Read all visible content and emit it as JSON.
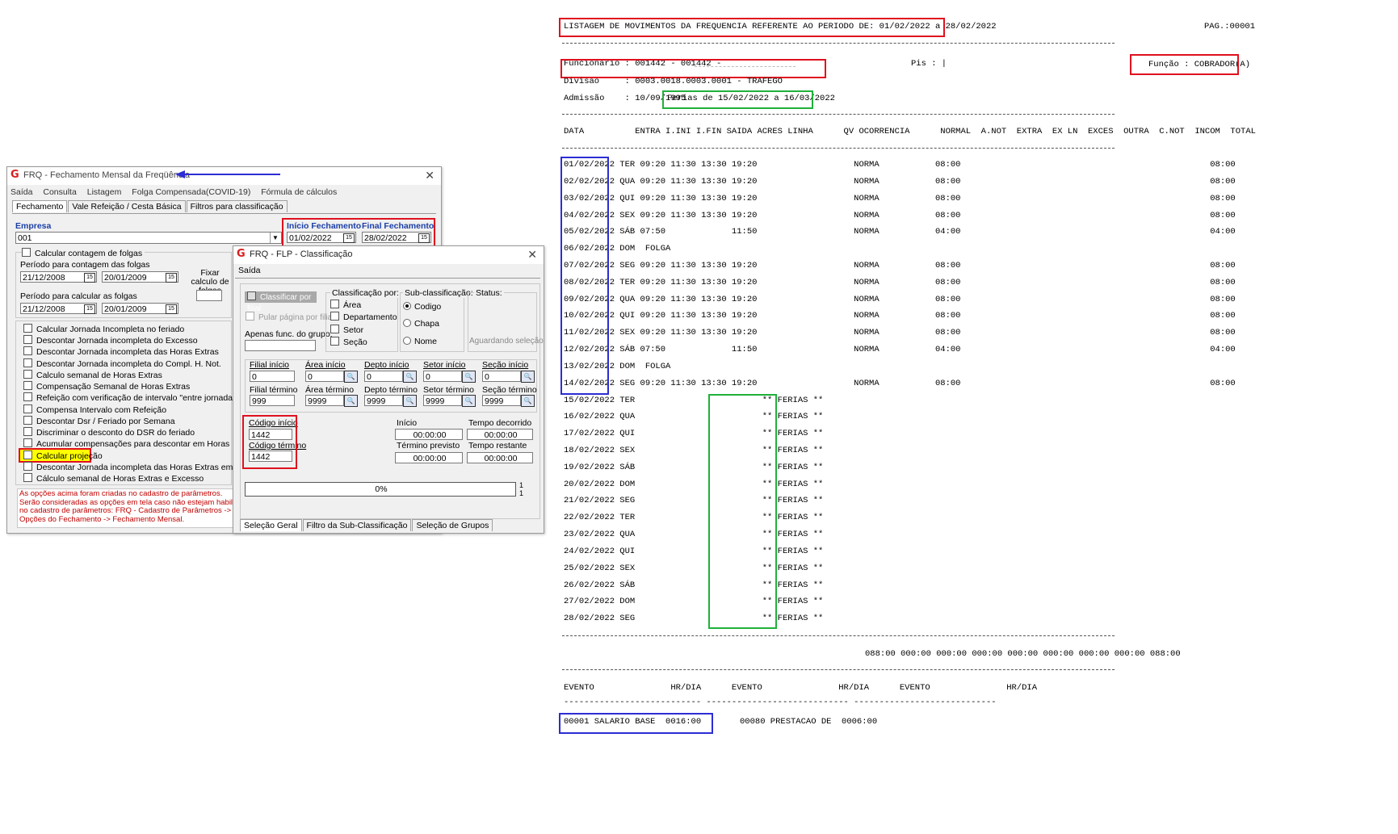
{
  "left_window": {
    "title": "FRQ - Fechamento Mensal da Freqüência",
    "close": "✕",
    "menu": [
      "Saída",
      "Consulta",
      "Listagem",
      "Folga Compensada(COVID-19)",
      "Fórmula de cálculos"
    ],
    "tabs": [
      "Fechamento",
      "Vale Refeição / Cesta Básica",
      "Filtros para classificação"
    ],
    "empresa_label": "Empresa",
    "empresa_value": "001",
    "inicio_label": "Início Fechamento",
    "final_label": "Final Fechamento",
    "inicio_value": "01/02/2022",
    "final_value": "28/02/2022",
    "calcular_contagem_folgas": "Calcular contagem de folgas",
    "periodo_contagem_label": "Período para contagem das folgas",
    "periodo_contagem_de": "21/12/2008",
    "periodo_contagem_ate": "20/01/2009",
    "fixar_calculo_label": "Fixar calculo de folgas",
    "periodo_calcular_label": "Período para calcular as folgas",
    "periodo_calcular_de": "21/12/2008",
    "periodo_calcular_ate": "20/01/2009",
    "options": [
      "Calcular Jornada Incompleta no feriado",
      "Descontar Jornada incompleta do Excesso",
      "Descontar Jornada incompleta das Horas Extras",
      "Descontar Jornada incompleta do Compl. H. Not.",
      "Calculo semanal de Horas Extras",
      "Compensação Semanal de Horas Extras",
      "Refeição com verificação de intervalo \"entre jornadas\"",
      "Compensa Intervalo com Refeição",
      "Descontar Dsr / Feriado por Semana",
      "Discriminar o desconto do DSR do feriado",
      "Acumular compensações para descontar em Horas",
      "Calcular projeção",
      "Descontar Jornada incompleta das Horas Extras em primeiro",
      "Cálculo semanal de Horas Extras e Excesso"
    ],
    "notice": [
      "As opções acima foram criadas no cadastro de parâmetros.",
      "Serão consideradas as opções em tela caso não estejam habilitados",
      "no cadastro de parâmetros: FRQ - Cadastro de Parâmetros ->",
      "Opções do Fechamento -> Fechamento Mensal."
    ]
  },
  "right_window": {
    "title": "FRQ - FLP - Classificação",
    "close": "✕",
    "menu": "Saída",
    "classificar_filial": "Classificar por filial",
    "pular_pagina": "Pular página por filial",
    "apenas_func_grupo": "Apenas func. do grupo:",
    "classificacao_label": "Classificação  por:",
    "classificacao_opts": [
      "Área",
      "Departamento",
      "Setor",
      "Seção"
    ],
    "subclass_label": "Sub-classificação:",
    "subclass_opts": [
      "Codigo",
      "Chapa",
      "Nome"
    ],
    "status_label": "Status:",
    "status_value": "Aguardando seleção",
    "filial_inicio_label": "Filial início",
    "filial_inicio": "0",
    "filial_termino_label": "Filial término",
    "filial_termino": "999",
    "area_inicio_label": "Área início",
    "area_inicio": "0",
    "area_termino_label": "Área término",
    "area_termino": "9999",
    "depto_inicio_label": "Depto início",
    "depto_inicio": "0",
    "depto_termino_label": "Depto término",
    "depto_termino": "9999",
    "setor_inicio_label": "Setor início",
    "setor_inicio": "0",
    "setor_termino_label": "Setor término",
    "setor_termino": "9999",
    "secao_inicio_label": "Seção início",
    "secao_inicio": "0",
    "secao_termino_label": "Seção término",
    "secao_termino": "9999",
    "codigo_inicio_label": "Código início",
    "codigo_inicio": "1442",
    "codigo_termino_label": "Código término",
    "codigo_termino": "1442",
    "inicio_label": "Início",
    "inicio_value": "00:00:00",
    "tempo_decorrido_label": "Tempo decorrido",
    "tempo_decorrido": "00:00:00",
    "termino_previsto_label": "Término previsto",
    "termino_previsto": "00:00:00",
    "tempo_restante_label": "Tempo restante",
    "tempo_restante": "00:00:00",
    "progress": "0%",
    "progress_side_1": "1",
    "progress_side_2": "1",
    "tabs": [
      "Seleção Geral",
      "Filtro da Sub-Classificação",
      "Seleção de Grupos"
    ]
  },
  "report": {
    "header": "LISTAGEM DE MOVIMENTOS DA FREQUENCIA REFERENTE AO PERIODO DE: 01/02/2022 a 28/02/2022",
    "page": "PAG.:00001",
    "funcionario": "Funcionario : 001442 - 001442 -",
    "pis": "Pis : |",
    "funcao": "Função : COBRADOR(A)",
    "divisao": "Divisao     : 0003.0018.0003.0001 - TRAFEGO",
    "admissao": "Admissão    : 10/09/1995",
    "ferias": "Ferias de 15/02/2022 a 16/03/2022",
    "columns": "DATA          ENTRA I.INI I.FIN SAIDA ACRES LINHA      QV OCORRENCIA      NORMAL  A.NOT  EXTRA  EX LN  EXCES  OUTRA  C.NOT  INCOM  TOTAL",
    "rows": [
      "01/02/2022 TER 09:20 11:30 13:30 19:20                   NORMA           08:00                                                 08:00",
      "02/02/2022 QUA 09:20 11:30 13:30 19:20                   NORMA           08:00                                                 08:00",
      "03/02/2022 QUI 09:20 11:30 13:30 19:20                   NORMA           08:00                                                 08:00",
      "04/02/2022 SEX 09:20 11:30 13:30 19:20                   NORMA           08:00                                                 08:00",
      "05/02/2022 SÁB 07:50             11:50                   NORMA           04:00                                                 04:00",
      "06/02/2022 DOM  FOLGA",
      "07/02/2022 SEG 09:20 11:30 13:30 19:20                   NORMA           08:00                                                 08:00",
      "08/02/2022 TER 09:20 11:30 13:30 19:20                   NORMA           08:00                                                 08:00",
      "09/02/2022 QUA 09:20 11:30 13:30 19:20                   NORMA           08:00                                                 08:00",
      "10/02/2022 QUI 09:20 11:30 13:30 19:20                   NORMA           08:00                                                 08:00",
      "11/02/2022 SEX 09:20 11:30 13:30 19:20                   NORMA           08:00                                                 08:00",
      "12/02/2022 SÁB 07:50             11:50                   NORMA           04:00                                                 04:00",
      "13/02/2022 DOM  FOLGA",
      "14/02/2022 SEG 09:20 11:30 13:30 19:20                   NORMA           08:00                                                 08:00",
      "15/02/2022 TER                         ** FERIAS **",
      "16/02/2022 QUA                         ** FERIAS **",
      "17/02/2022 QUI                         ** FERIAS **",
      "18/02/2022 SEX                         ** FERIAS **",
      "19/02/2022 SÁB                         ** FERIAS **",
      "20/02/2022 DOM                         ** FERIAS **",
      "21/02/2022 SEG                         ** FERIAS **",
      "22/02/2022 TER                         ** FERIAS **",
      "23/02/2022 QUA                         ** FERIAS **",
      "24/02/2022 QUI                         ** FERIAS **",
      "25/02/2022 SEX                         ** FERIAS **",
      "26/02/2022 SÁB                         ** FERIAS **",
      "27/02/2022 DOM                         ** FERIAS **",
      "28/02/2022 SEG                         ** FERIAS **"
    ],
    "totals": "088:00 000:00 000:00 000:00 000:00 000:00 000:00 000:00 088:00",
    "evento_header": "EVENTO               HR/DIA      EVENTO               HR/DIA      EVENTO               HR/DIA",
    "evento_dashes": "--------------------------- ---------------------------- ----------------------------",
    "evento_1": "00001 SALARIO BASE  0016:00",
    "evento_2": "00080 PRESTACAO DE  0006:00"
  },
  "colors": {
    "red": "#e0101e",
    "blue": "#2c2cd4",
    "green": "#1fb13a",
    "yellow": "#ffff00"
  }
}
